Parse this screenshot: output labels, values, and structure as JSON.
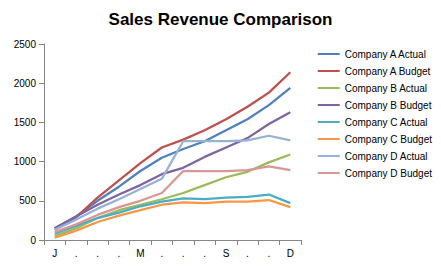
{
  "chart_data": {
    "type": "line",
    "title": "Sales Revenue Comparison",
    "categories": [
      "J",
      ".",
      ".",
      ".",
      "M",
      ".",
      ".",
      ".",
      "S",
      ".",
      ".",
      "D"
    ],
    "series": [
      {
        "name": "Company A Actual",
        "color": "#4F81BD",
        "values": [
          150,
          300,
          500,
          680,
          880,
          1050,
          1160,
          1260,
          1400,
          1540,
          1720,
          1940
        ]
      },
      {
        "name": "Company A Budget",
        "color": "#C0504D",
        "values": [
          130,
          290,
          540,
          760,
          980,
          1180,
          1280,
          1400,
          1540,
          1700,
          1880,
          2140
        ]
      },
      {
        "name": "Company B Actual",
        "color": "#9BBB59",
        "values": [
          50,
          150,
          280,
          380,
          450,
          520,
          600,
          700,
          800,
          870,
          990,
          1090
        ]
      },
      {
        "name": "Company B Budget",
        "color": "#8064A2",
        "values": [
          150,
          300,
          450,
          580,
          700,
          840,
          920,
          1060,
          1180,
          1300,
          1480,
          1630
        ]
      },
      {
        "name": "Company C Actual",
        "color": "#4BACC6",
        "values": [
          80,
          180,
          280,
          350,
          430,
          490,
          530,
          520,
          540,
          550,
          580,
          470
        ]
      },
      {
        "name": "Company C Budget",
        "color": "#F79646",
        "values": [
          30,
          120,
          230,
          310,
          380,
          450,
          480,
          470,
          490,
          490,
          510,
          420
        ]
      },
      {
        "name": "Company D Actual",
        "color": "#95B3D7",
        "values": [
          130,
          260,
          400,
          520,
          650,
          780,
          1260,
          1260,
          1260,
          1270,
          1330,
          1270
        ]
      },
      {
        "name": "Company D Budget",
        "color": "#D99694",
        "values": [
          100,
          200,
          320,
          420,
          500,
          600,
          880,
          880,
          880,
          890,
          940,
          890
        ]
      }
    ],
    "ylim": [
      0,
      2500
    ],
    "yticks": [
      0,
      500,
      1000,
      1500,
      2000,
      2500
    ],
    "grid": false,
    "legend": "right"
  }
}
